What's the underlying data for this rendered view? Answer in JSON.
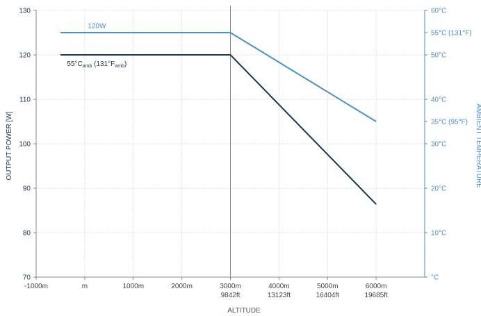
{
  "chart_data": {
    "type": "line",
    "xlabel": "ALTITUDE",
    "ylabel": "OUTPUT POWER [W]",
    "y2label": "AMBIENT TEMPERATURE",
    "x_ticks": [
      {
        "value": -1000,
        "label": "-1000m"
      },
      {
        "value": 0,
        "label": "m"
      },
      {
        "value": 1000,
        "label": "1000m"
      },
      {
        "value": 2000,
        "label": "2000m"
      },
      {
        "value": 3000,
        "label": "3000m",
        "sublabel": "9842ft"
      },
      {
        "value": 4000,
        "label": "4000m",
        "sublabel": "13123ft"
      },
      {
        "value": 5000,
        "label": "5000m",
        "sublabel": "16404ft"
      },
      {
        "value": 6000,
        "label": "6000m",
        "sublabel": "19685ft"
      }
    ],
    "xlim": [
      -1000,
      7000
    ],
    "ylim": [
      70,
      130
    ],
    "y_ticks": [
      70,
      80,
      90,
      100,
      110,
      120,
      130
    ],
    "y2_ticks": [
      {
        "y": 70,
        "label": "°C"
      },
      {
        "y": 80,
        "label": "10°C"
      },
      {
        "y": 90,
        "label": "20°C"
      },
      {
        "y": 100,
        "label": "30°C"
      },
      {
        "y": 105,
        "label": "35°C (95°F)"
      },
      {
        "y": 110,
        "label": "40°C"
      },
      {
        "y": 120,
        "label": "50°C"
      },
      {
        "y": 125,
        "label": "55°C (131°F)"
      },
      {
        "y": 130,
        "label": "60°C"
      }
    ],
    "vline_x": 3000,
    "grid": true,
    "series": [
      {
        "color": "#4a90c8",
        "points": [
          {
            "x": -500,
            "y": 125
          },
          {
            "x": 3000,
            "y": 125
          },
          {
            "x": 6000,
            "y": 105
          }
        ]
      },
      {
        "color": "#1a3555",
        "points": [
          {
            "x": -500,
            "y": 120
          },
          {
            "x": 3000,
            "y": 120
          },
          {
            "x": 6000,
            "y": 86.4
          }
        ]
      }
    ],
    "annotations": [
      {
        "text": "120W",
        "x": 250,
        "y": 126,
        "color": "#4a90c8",
        "series": 0
      },
      {
        "main": "55°C",
        "sub1": "amb",
        "mid": " (131°F",
        "sub2": "amb",
        "end": ")",
        "x": 250,
        "y": 117.5,
        "color": "#1a3555",
        "series": 1
      }
    ]
  }
}
